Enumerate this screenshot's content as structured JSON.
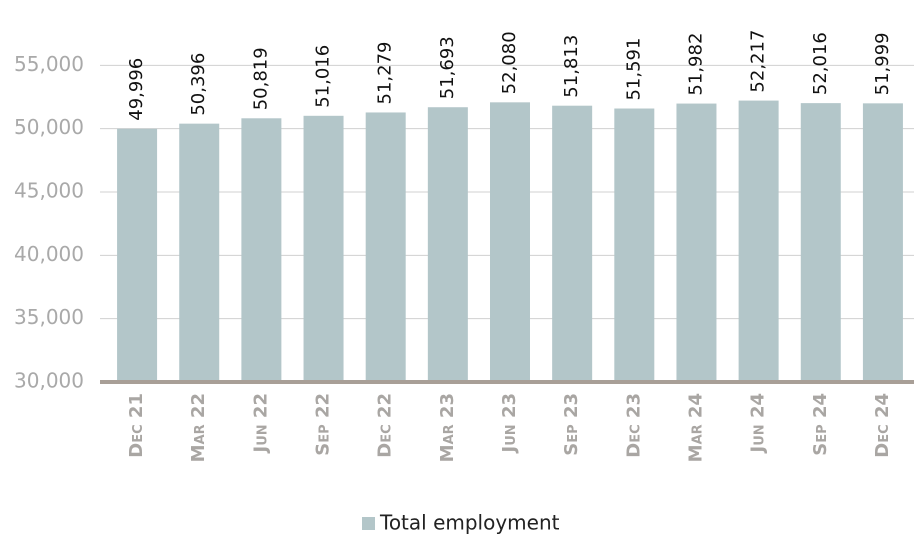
{
  "chart_data": {
    "type": "bar",
    "categories": [
      "Dec 21",
      "Mar 22",
      "Jun 22",
      "Sep 22",
      "Dec 22",
      "Mar 23",
      "Jun 23",
      "Sep 23",
      "Dec 23",
      "Mar 24",
      "Jun 24",
      "Sep 24",
      "Dec 24"
    ],
    "series": [
      {
        "name": "Total employment",
        "color": "#b3c6c9",
        "values": [
          49996,
          50396,
          50819,
          51016,
          51279,
          51693,
          52080,
          51813,
          51591,
          51982,
          52217,
          52016,
          51999
        ],
        "value_labels": [
          "49,996",
          "50,396",
          "50,819",
          "51,016",
          "51,279",
          "51,693",
          "52,080",
          "51,813",
          "51,591",
          "51,982",
          "52,217",
          "52,016",
          "51,999"
        ]
      }
    ],
    "ylim": [
      30000,
      60000
    ],
    "yticks": [
      {
        "value": 30000,
        "label": "30,000"
      },
      {
        "value": 35000,
        "label": "35,000"
      },
      {
        "value": 40000,
        "label": "40,000"
      },
      {
        "value": 45000,
        "label": "45,000"
      },
      {
        "value": 50000,
        "label": "50,000"
      },
      {
        "value": 55000,
        "label": "55,000"
      }
    ],
    "grid": true,
    "legend": "bottom"
  }
}
